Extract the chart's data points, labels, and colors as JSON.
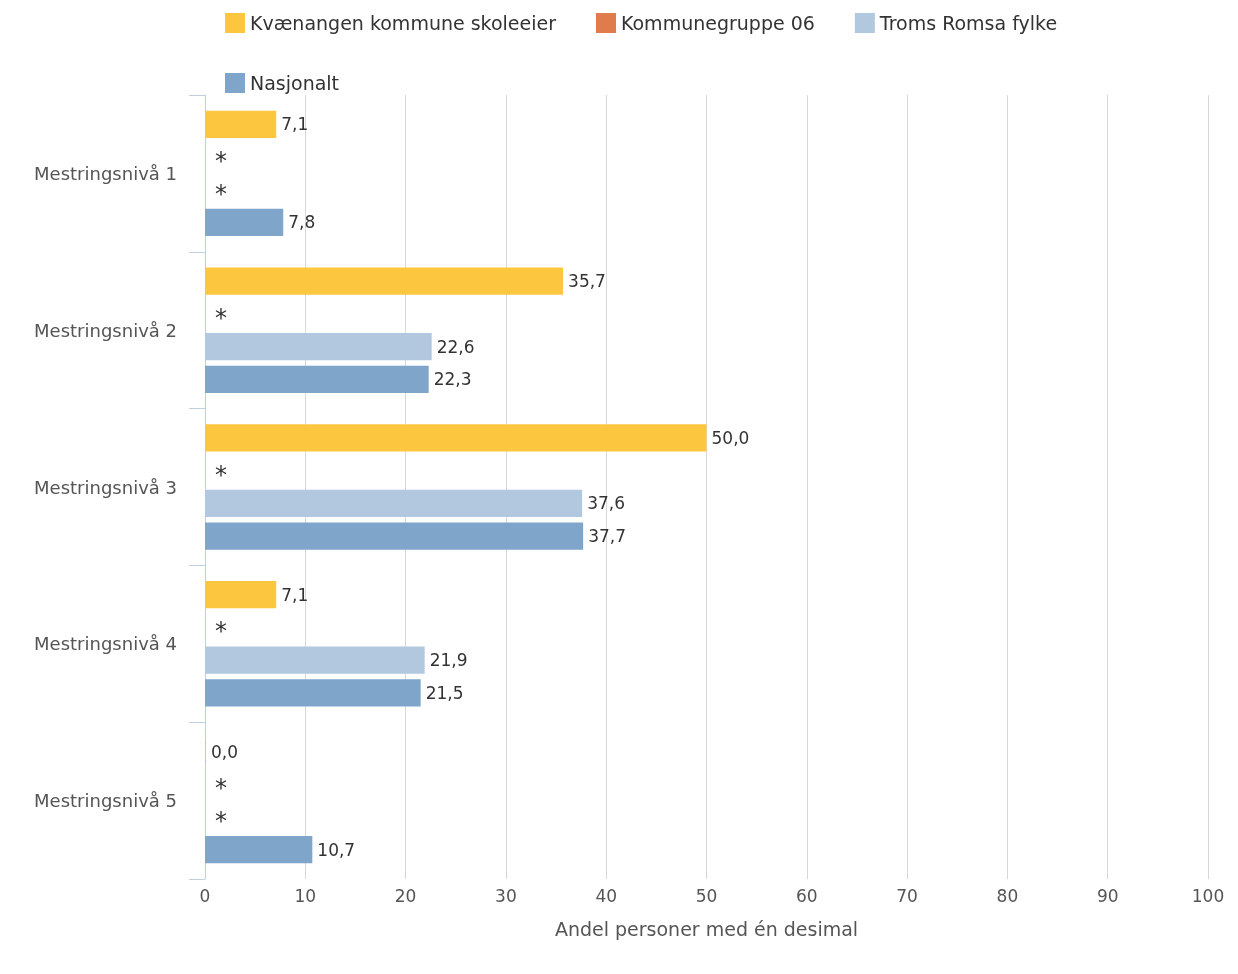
{
  "chart_data": {
    "type": "bar",
    "orientation": "horizontal",
    "xlabel": "Andel personer med én desimal",
    "categories": [
      "Mestringsnivå 1",
      "Mestringsnivå 2",
      "Mestringsnivå 3",
      "Mestringsnivå 4",
      "Mestringsnivå 5"
    ],
    "series": [
      {
        "name": "Kvænangen kommune skoleeier",
        "color": "#fdc63f",
        "values": [
          7.1,
          35.7,
          50.0,
          7.1,
          0.0
        ],
        "value_labels": [
          "7,1",
          "35,7",
          "50,0",
          "7,1",
          "0,0"
        ]
      },
      {
        "name": "Kommunegruppe 06",
        "color": "#e07b4b",
        "values": [
          null,
          null,
          null,
          null,
          null
        ],
        "value_labels": [
          "*",
          "*",
          "*",
          "*",
          "*"
        ]
      },
      {
        "name": "Troms Romsa fylke",
        "color": "#b1c8de",
        "values": [
          null,
          22.6,
          37.6,
          21.9,
          null
        ],
        "value_labels": [
          "*",
          "22,6",
          "37,6",
          "21,9",
          "*"
        ]
      },
      {
        "name": "Nasjonalt",
        "color": "#7fa5cb",
        "values": [
          7.8,
          22.3,
          37.7,
          21.5,
          10.7
        ],
        "value_labels": [
          "7,8",
          "22,3",
          "37,7",
          "21,5",
          "10,7"
        ]
      }
    ],
    "xlim": [
      0,
      100
    ],
    "xticks": [
      0,
      10,
      20,
      30,
      40,
      50,
      60,
      70,
      80,
      90,
      100
    ],
    "grid": "x",
    "legend": "top"
  }
}
